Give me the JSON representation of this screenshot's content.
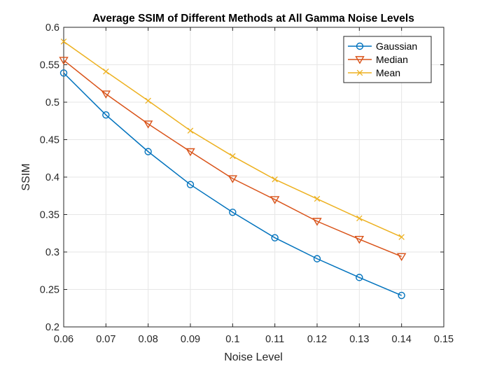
{
  "chart_data": {
    "type": "line",
    "title": "Average SSIM of Different Methods at All Gamma Noise Levels",
    "xlabel": "Noise Level",
    "ylabel": "SSIM",
    "xlim": [
      0.06,
      0.15
    ],
    "ylim": [
      0.2,
      0.6
    ],
    "xticks": [
      "0.06",
      "0.07",
      "0.08",
      "0.09",
      "0.1",
      "0.11",
      "0.12",
      "0.13",
      "0.14",
      "0.15"
    ],
    "yticks": [
      "0.2",
      "0.25",
      "0.3",
      "0.35",
      "0.4",
      "0.45",
      "0.5",
      "0.55",
      "0.6"
    ],
    "grid": true,
    "legend_position": "top-right",
    "x": [
      0.06,
      0.07,
      0.08,
      0.09,
      0.1,
      0.11,
      0.12,
      0.13,
      0.14
    ],
    "series": [
      {
        "name": "Gaussian",
        "color": "#0072BD",
        "marker": "circle",
        "values": [
          0.539,
          0.483,
          0.434,
          0.39,
          0.353,
          0.319,
          0.291,
          0.266,
          0.242
        ]
      },
      {
        "name": "Median",
        "color": "#D95319",
        "marker": "triangle-down",
        "values": [
          0.556,
          0.511,
          0.471,
          0.434,
          0.398,
          0.37,
          0.341,
          0.317,
          0.294
        ]
      },
      {
        "name": "Mean",
        "color": "#EDB120",
        "marker": "x",
        "values": [
          0.581,
          0.541,
          0.502,
          0.462,
          0.428,
          0.397,
          0.371,
          0.345,
          0.32
        ]
      }
    ]
  }
}
